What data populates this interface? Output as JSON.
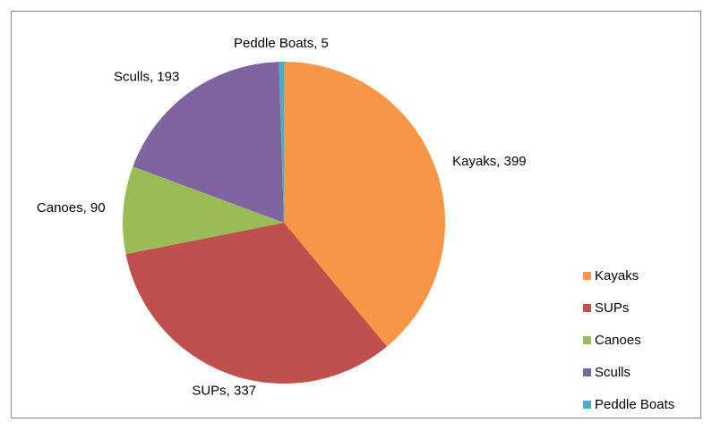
{
  "chart_data": {
    "type": "pie",
    "categories": [
      "Kayaks",
      "SUPs",
      "Canoes",
      "Sculls",
      "Peddle Boats"
    ],
    "values": [
      399,
      337,
      90,
      193,
      5
    ],
    "value_labels": [
      "Kayaks, 399",
      "SUPs, 337",
      "Canoes, 90",
      "Sculls, 193",
      "Peddle Boats, 5"
    ],
    "colors": [
      "#f79646",
      "#c0504d",
      "#9bbb59",
      "#8064a2",
      "#4bacc6"
    ],
    "legend": "right"
  }
}
